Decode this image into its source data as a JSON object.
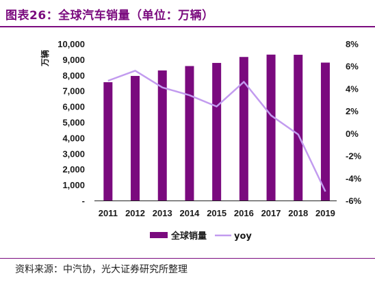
{
  "title": "图表26：全球汽车销量（单位：万辆）",
  "source": "资料来源：中汽协，光大证券研究所整理",
  "colors": {
    "bar": "#7A0A7E",
    "line": "#C29BEF",
    "title": "#7A0A7E"
  },
  "chart_data": {
    "type": "bar",
    "categories": [
      "2011",
      "2012",
      "2013",
      "2014",
      "2015",
      "2016",
      "2017",
      "2018",
      "2019"
    ],
    "series": [
      {
        "name": "全球销量",
        "type": "bar",
        "axis": "left",
        "values": [
          7550,
          7950,
          8300,
          8580,
          8780,
          9160,
          9310,
          9300,
          8800
        ]
      },
      {
        "name": "yoy",
        "type": "line",
        "axis": "right",
        "values": [
          4.7,
          5.6,
          4.1,
          3.4,
          2.4,
          4.6,
          1.6,
          -0.1,
          -5.2
        ]
      }
    ],
    "ylabel": "万辆",
    "ylim": [
      0,
      10000
    ],
    "y_ticks": [
      "-",
      "1,000",
      "2,000",
      "3,000",
      "4,000",
      "5,000",
      "6,000",
      "7,000",
      "8,000",
      "9,000",
      "10,000"
    ],
    "y2lim": [
      -6,
      8
    ],
    "y2_ticks": [
      "-6%",
      "-4%",
      "-2%",
      "0%",
      "2%",
      "4%",
      "6%",
      "8%"
    ],
    "legend": "bottom",
    "grid": false
  }
}
